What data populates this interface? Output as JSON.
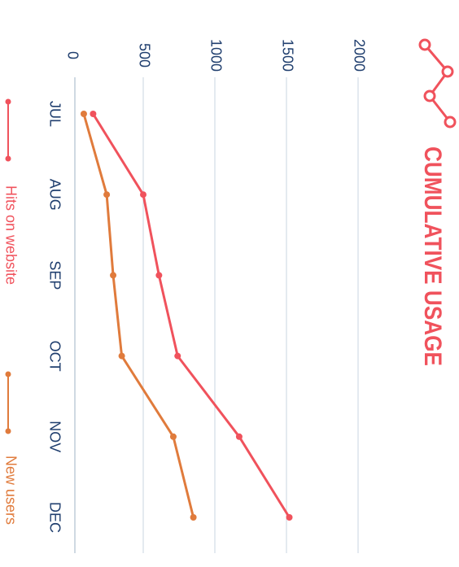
{
  "chart_data": {
    "type": "line",
    "title": "CUMULATIVE USAGE",
    "categories": [
      "JUL",
      "AUG",
      "SEP",
      "OCT",
      "NOV",
      "DEC"
    ],
    "series": [
      {
        "name": "Hits on website",
        "color": "#f0525c",
        "values": [
          150,
          500,
          610,
          740,
          1170,
          1520
        ]
      },
      {
        "name": "New users",
        "color": "#e07b3c",
        "values": [
          85,
          245,
          290,
          350,
          710,
          850
        ]
      }
    ],
    "ylim": [
      0,
      2000
    ],
    "yticks": [
      0,
      500,
      1000,
      1500,
      2000
    ],
    "grid": true
  }
}
